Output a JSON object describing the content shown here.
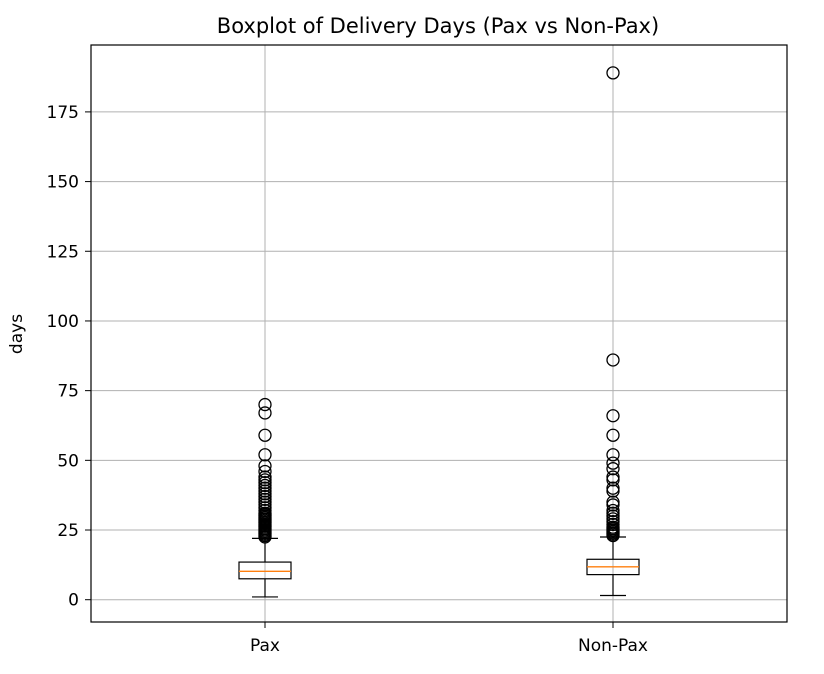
{
  "chart_data": {
    "type": "boxplot",
    "title": "Boxplot of Delivery Days (Pax vs Non-Pax)",
    "xlabel": "",
    "ylabel": "days",
    "ylim": [
      -8,
      199
    ],
    "yticks": [
      0,
      25,
      50,
      75,
      100,
      125,
      150,
      175
    ],
    "grid": true,
    "series": [
      {
        "name": "Pax",
        "whisker_low": 1,
        "q1": 7.5,
        "median": 10.2,
        "q3": 13.5,
        "whisker_high": 22,
        "outliers": [
          22.5,
          23,
          23.5,
          24,
          24.5,
          25,
          25.5,
          26,
          26.5,
          27,
          27.5,
          28,
          28.5,
          29,
          29.5,
          30,
          30.5,
          31,
          32,
          33,
          34,
          35,
          36,
          37,
          38,
          39,
          40,
          41,
          42,
          43,
          44,
          46,
          48,
          52,
          59,
          67,
          70
        ]
      },
      {
        "name": "Non-Pax",
        "whisker_low": 1.5,
        "q1": 9,
        "median": 11.8,
        "q3": 14.5,
        "whisker_high": 22.5,
        "outliers": [
          23,
          23.5,
          24,
          24.5,
          25,
          25.5,
          26,
          27,
          28,
          29,
          30,
          31,
          32,
          34,
          35,
          39,
          40,
          43,
          44,
          47,
          49,
          52,
          59,
          66,
          86,
          189
        ]
      }
    ],
    "colors": {
      "box": "#000000",
      "median": "#ff7f0e",
      "grid": "#b0b0b0",
      "axes": "#000000"
    }
  }
}
